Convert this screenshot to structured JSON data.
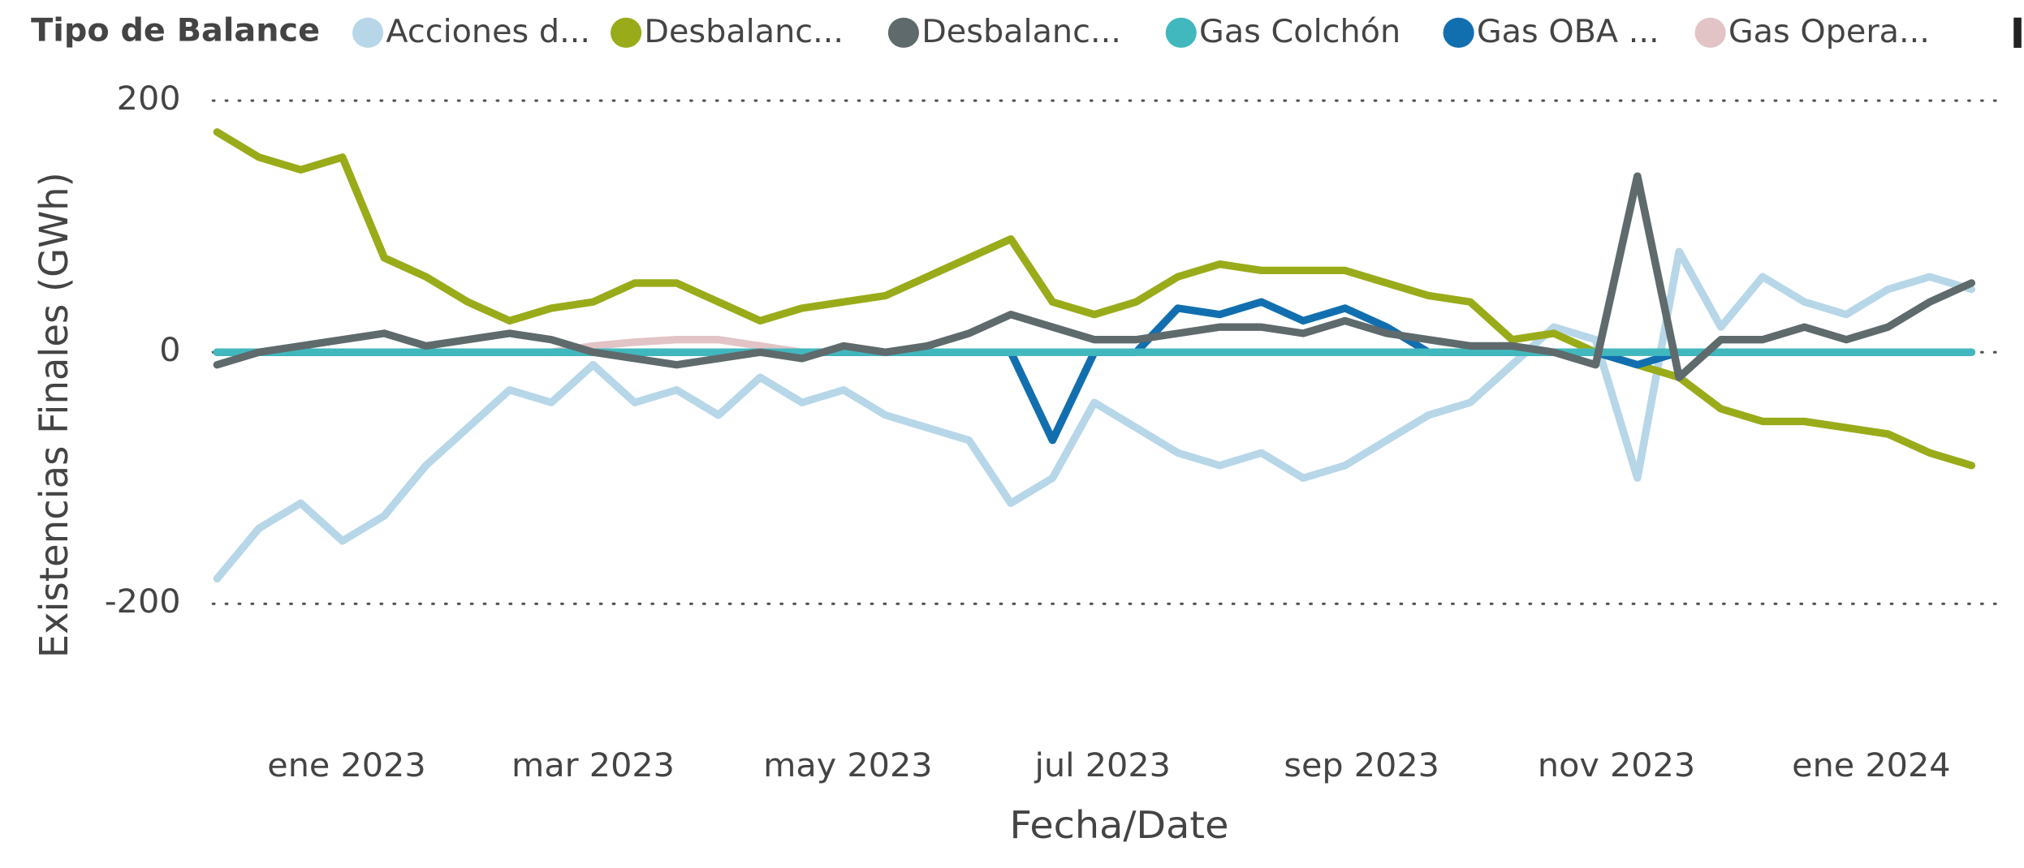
{
  "chart_data": {
    "type": "line",
    "legend_title": "Tipo de Balance",
    "y_label": "Existencias Finales (GWh)",
    "x_label": "Fecha/Date",
    "x": [
      "2022-12-01",
      "2022-12-11",
      "2022-12-21",
      "2022-12-31",
      "2023-01-10",
      "2023-01-20",
      "2023-01-30",
      "2023-02-09",
      "2023-02-19",
      "2023-03-01",
      "2023-03-11",
      "2023-03-21",
      "2023-03-31",
      "2023-04-10",
      "2023-04-20",
      "2023-04-30",
      "2023-05-10",
      "2023-05-20",
      "2023-05-30",
      "2023-06-09",
      "2023-06-19",
      "2023-06-29",
      "2023-07-09",
      "2023-07-19",
      "2023-07-29",
      "2023-08-08",
      "2023-08-18",
      "2023-08-28",
      "2023-09-07",
      "2023-09-17",
      "2023-09-27",
      "2023-10-07",
      "2023-10-17",
      "2023-10-27",
      "2023-11-06",
      "2023-11-16",
      "2023-11-26",
      "2023-12-06",
      "2023-12-16",
      "2023-12-26",
      "2024-01-05",
      "2024-01-15",
      "2024-01-25"
    ],
    "series": [
      {
        "name": "Acciones d...",
        "color": "#b7d7e8",
        "values": [
          -180,
          -140,
          -120,
          -150,
          -130,
          -90,
          -60,
          -30,
          -40,
          -10,
          -40,
          -30,
          -50,
          -20,
          -40,
          -30,
          -50,
          -60,
          -70,
          -120,
          -100,
          -40,
          -60,
          -80,
          -90,
          -80,
          -100,
          -90,
          -70,
          -50,
          -40,
          -10,
          20,
          10,
          -100,
          80,
          20,
          60,
          40,
          30,
          50,
          60,
          50
        ]
      },
      {
        "name": "Desbalanc...",
        "color": "#9aab1a",
        "values": [
          175,
          155,
          145,
          155,
          75,
          60,
          40,
          25,
          35,
          40,
          55,
          55,
          40,
          25,
          35,
          40,
          45,
          60,
          75,
          90,
          40,
          30,
          40,
          60,
          70,
          65,
          65,
          65,
          55,
          45,
          40,
          10,
          15,
          0,
          -10,
          -20,
          -45,
          -55,
          -55,
          -60,
          -65,
          -80,
          -90
        ]
      },
      {
        "name": "Desbalanc...",
        "color": "#5f6a6c",
        "values": [
          -10,
          0,
          5,
          10,
          15,
          5,
          10,
          15,
          10,
          0,
          -5,
          -10,
          -5,
          0,
          -5,
          5,
          0,
          5,
          15,
          30,
          20,
          10,
          10,
          15,
          20,
          20,
          15,
          25,
          15,
          10,
          5,
          5,
          0,
          -10,
          140,
          -20,
          10,
          10,
          20,
          10,
          20,
          40,
          55
        ]
      },
      {
        "name": "Gas Colchón",
        "color": "#41b8be",
        "values": [
          0,
          0,
          0,
          0,
          0,
          0,
          0,
          0,
          0,
          0,
          0,
          0,
          0,
          0,
          0,
          0,
          0,
          0,
          0,
          0,
          0,
          0,
          0,
          0,
          0,
          0,
          0,
          0,
          0,
          0,
          0,
          0,
          0,
          0,
          0,
          0,
          0,
          0,
          0,
          0,
          0,
          0,
          0
        ]
      },
      {
        "name": "Gas OBA ...",
        "color": "#126faf",
        "values": [
          0,
          0,
          0,
          0,
          0,
          0,
          0,
          0,
          0,
          0,
          0,
          0,
          0,
          0,
          0,
          0,
          0,
          0,
          0,
          0,
          -70,
          0,
          0,
          35,
          30,
          40,
          25,
          35,
          20,
          0,
          0,
          0,
          0,
          0,
          -10,
          0,
          0,
          0,
          0,
          0,
          0,
          0,
          0
        ]
      },
      {
        "name": "Gas Opera...",
        "color": "#e2c4c6",
        "values": [
          0,
          0,
          0,
          0,
          0,
          0,
          0,
          0,
          0,
          5,
          8,
          10,
          10,
          5,
          0,
          0,
          0,
          0,
          0,
          0,
          0,
          0,
          0,
          0,
          0,
          0,
          0,
          0,
          0,
          0,
          0,
          0,
          0,
          0,
          0,
          0,
          0,
          0,
          0,
          0,
          0,
          0,
          0
        ]
      }
    ],
    "draw_order_note": null,
    "xlim": [
      "2022-11-30",
      "2024-02-01"
    ],
    "xticks": [
      {
        "value": "2023-01-01",
        "label": "ene 2023"
      },
      {
        "value": "2023-03-01",
        "label": "mar 2023"
      },
      {
        "value": "2023-05-01",
        "label": "may 2023"
      },
      {
        "value": "2023-07-01",
        "label": "jul 2023"
      },
      {
        "value": "2023-09-01",
        "label": "sep 2023"
      },
      {
        "value": "2023-11-01",
        "label": "nov 2023"
      },
      {
        "value": "2024-01-01",
        "label": "ene 2024"
      }
    ],
    "ylim": [
      -280,
      210
    ],
    "yticks": [
      -200,
      0,
      200
    ],
    "grid": true
  }
}
